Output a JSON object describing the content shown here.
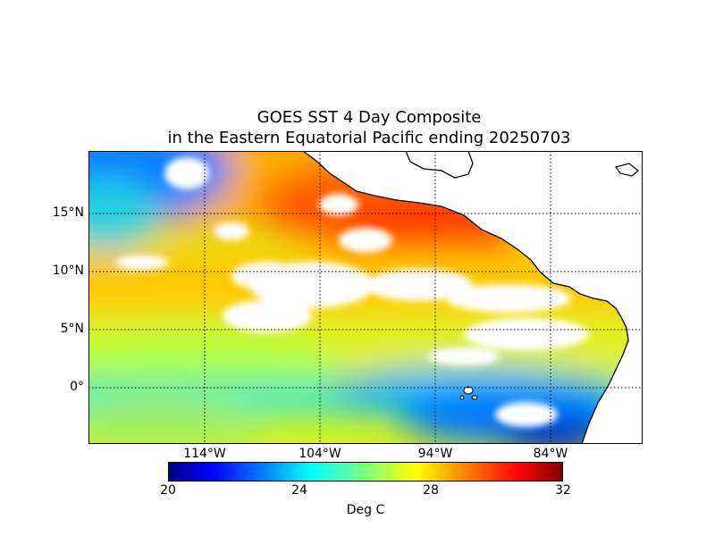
{
  "title": {
    "line1": "GOES SST 4 Day Composite",
    "line2": "in the Eastern Equatorial Pacific ending 20250703"
  },
  "map": {
    "lat_labels": [
      "15°N",
      "10°N",
      "5°N",
      "0°"
    ],
    "lon_labels": [
      "114°W",
      "104°W",
      "94°W",
      "84°W"
    ],
    "lat_values": [
      15,
      10,
      5,
      0
    ],
    "lon_values": [
      -114,
      -104,
      -94,
      -84
    ],
    "lon_range": [
      -124,
      -76
    ],
    "lat_range": [
      -5,
      20
    ],
    "grid": "dotted",
    "missing_data_color": "#ffffff",
    "land_color": "#ffffff",
    "coastline_color": "#000000"
  },
  "colorbar": {
    "label": "Deg C",
    "ticks": [
      "20",
      "24",
      "28",
      "32"
    ],
    "tick_values": [
      20,
      24,
      28,
      32
    ],
    "range": [
      20,
      32
    ],
    "colormap": "jet"
  }
}
